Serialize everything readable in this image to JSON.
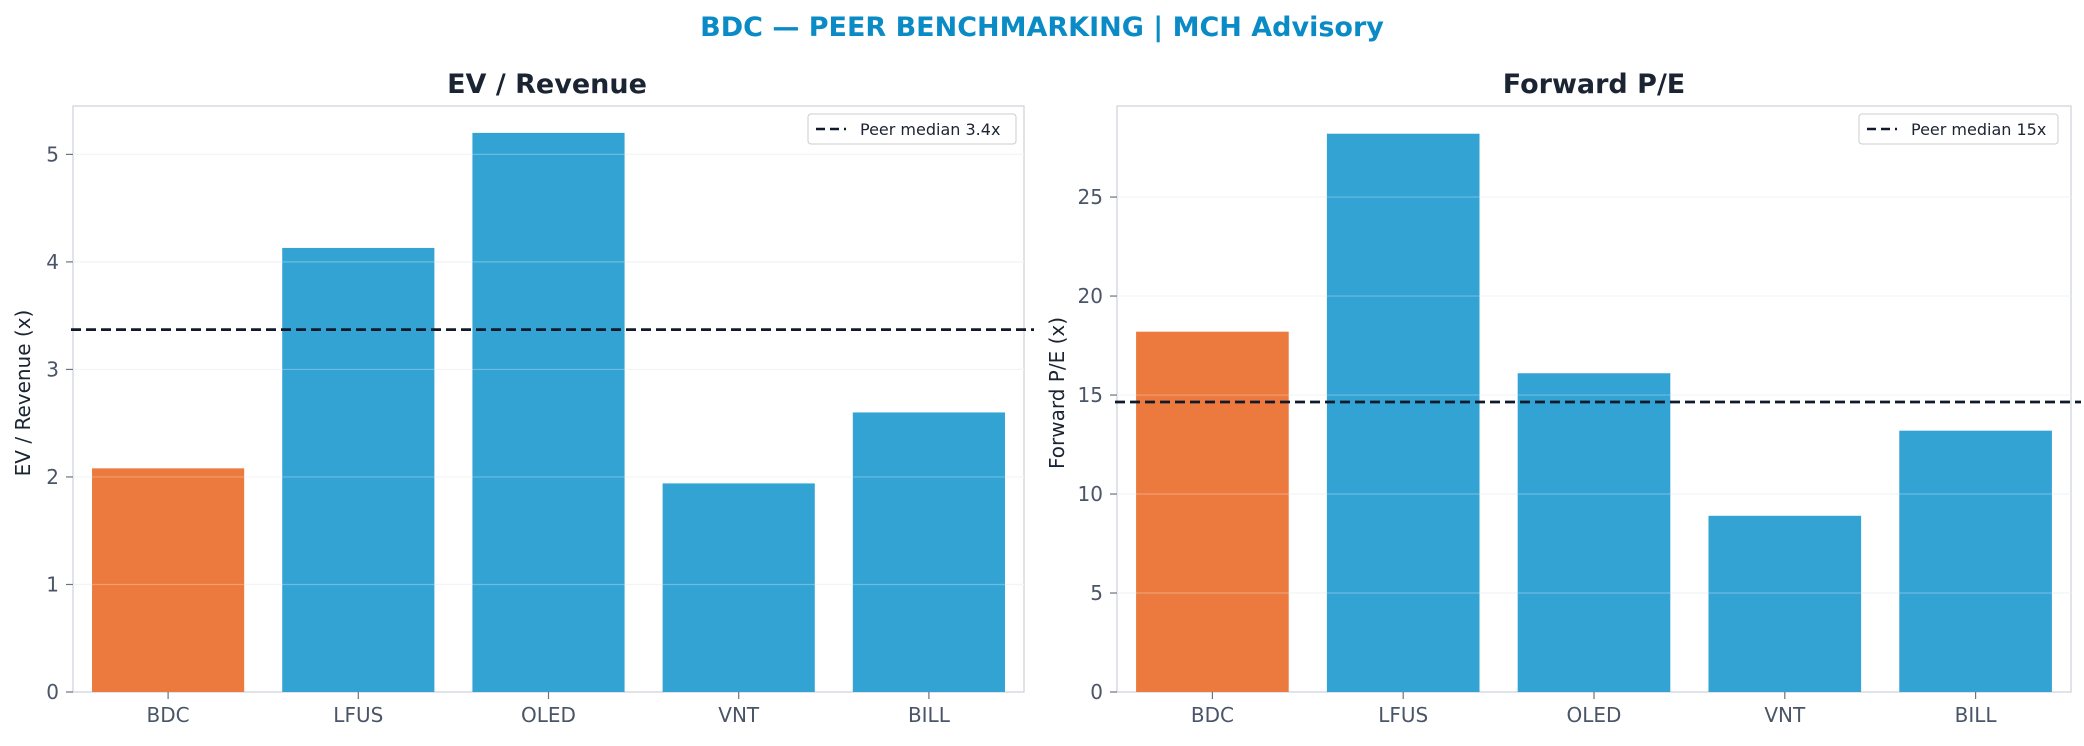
{
  "title": "BDC — PEER BENCHMARKING | MCH Advisory",
  "colors": {
    "highlight": "#ec7a3e",
    "peer": "#33a3d4",
    "median_line": "#111a2b",
    "title": "#0a8bc6"
  },
  "chart_data": [
    {
      "type": "bar",
      "title": "EV / Revenue",
      "xlabel": "",
      "ylabel": "EV / Revenue (x)",
      "categories": [
        "BDC",
        "LFUS",
        "OLED",
        "VNT",
        "BILL"
      ],
      "values": [
        2.08,
        4.13,
        5.2,
        1.94,
        2.6
      ],
      "highlight": "BDC",
      "ylim": [
        0,
        5.45
      ],
      "yticks": [
        "0",
        "1",
        "2",
        "3",
        "4",
        "5"
      ],
      "reference_line": {
        "value": 3.37,
        "label": "Peer median 3.4x",
        "style": "dashed"
      },
      "legend": "top-right",
      "grid": "horizontal"
    },
    {
      "type": "bar",
      "title": "Forward P/E",
      "xlabel": "",
      "ylabel": "Forward P/E (x)",
      "categories": [
        "BDC",
        "LFUS",
        "OLED",
        "VNT",
        "BILL"
      ],
      "values": [
        18.2,
        28.2,
        16.1,
        8.9,
        13.2
      ],
      "highlight": "BDC",
      "ylim": [
        0,
        29.6
      ],
      "yticks": [
        "0",
        "5",
        "10",
        "15",
        "20",
        "25"
      ],
      "reference_line": {
        "value": 14.65,
        "label": "Peer median 15x",
        "style": "dashed"
      },
      "legend": "top-right",
      "grid": "horizontal"
    }
  ]
}
